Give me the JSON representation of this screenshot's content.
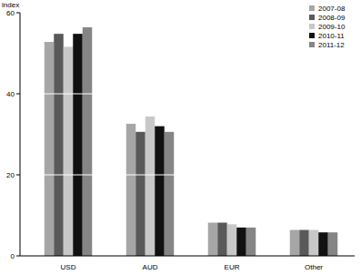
{
  "chart_data": {
    "type": "bar",
    "y_label": "index",
    "categories": [
      "USD",
      "AUD",
      "EUR",
      "Other"
    ],
    "series": [
      {
        "name": "2007-08",
        "color": "#a6a6a6",
        "values": [
          52.8,
          32.6,
          8.2,
          6.4
        ]
      },
      {
        "name": "2008-09",
        "color": "#595959",
        "values": [
          54.8,
          30.6,
          8.2,
          6.4
        ]
      },
      {
        "name": "2009-10",
        "color": "#c8c8c8",
        "values": [
          51.6,
          34.4,
          7.8,
          6.4
        ]
      },
      {
        "name": "2010-11",
        "color": "#111111",
        "values": [
          54.8,
          32.0,
          7.0,
          5.8
        ]
      },
      {
        "name": "2011-12",
        "color": "#858585",
        "values": [
          56.4,
          30.6,
          7.0,
          5.8
        ]
      }
    ],
    "ylim": [
      0,
      60
    ],
    "yticks": [
      0,
      20,
      40,
      60
    ],
    "grid": true,
    "legend": "top-right"
  }
}
